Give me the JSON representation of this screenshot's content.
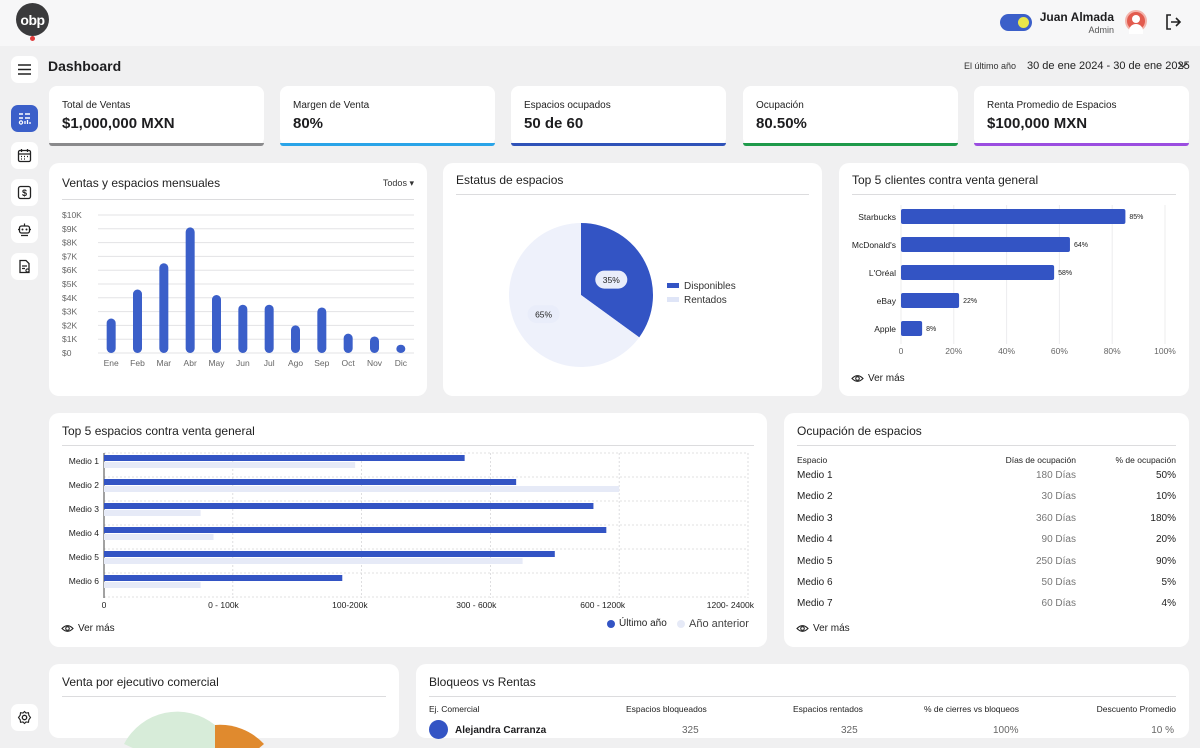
{
  "topbar": {
    "logo_text": "obp",
    "user_name": "Juan Almada",
    "user_role": "Admin"
  },
  "sidebar": {
    "items": [
      {
        "name": "menu",
        "icon": "hamburger-icon"
      },
      {
        "name": "dashboard",
        "icon": "dashboard-icon"
      },
      {
        "name": "calendar",
        "icon": "calendar-icon"
      },
      {
        "name": "billing",
        "icon": "dollar-icon"
      },
      {
        "name": "media",
        "icon": "robot-icon"
      },
      {
        "name": "reports",
        "icon": "document-icon"
      },
      {
        "name": "settings",
        "icon": "gear-icon"
      }
    ]
  },
  "header": {
    "title": "Dashboard",
    "period_label": "El último año",
    "date_range": "30 de ene 2024  - 30 de ene 2025"
  },
  "kpis": [
    {
      "label": "Total de Ventas",
      "value": "$1,000,000 MXN",
      "color": "#8a8a8c"
    },
    {
      "label": "Margen de Venta",
      "value": "80%",
      "color": "#2aa4e8"
    },
    {
      "label": "Espacios ocupados",
      "value": "50 de 60",
      "color": "#2f52b8"
    },
    {
      "label": "Ocupación",
      "value": "80.50%",
      "color": "#1e9a4a"
    },
    {
      "label": "Renta Promedio de Espacios",
      "value": "$100,000 MXN",
      "color": "#9b4de0"
    }
  ],
  "monthly": {
    "title": "Ventas y espacios mensuales",
    "filter": "Todos"
  },
  "status": {
    "title": "Estatus de espacios",
    "legend": [
      "Disponibles",
      "Rentados"
    ]
  },
  "clients": {
    "title": "Top 5 clientes contra venta general",
    "see_more": "Ver más"
  },
  "spaces": {
    "title": "Top 5 espacios contra venta general",
    "see_more": "Ver más",
    "legend": [
      "Último año",
      "Año anterior"
    ]
  },
  "occupancy": {
    "title": "Ocupación de espacios",
    "headers": [
      "Espacio",
      "Días de ocupación",
      "% de ocupación"
    ],
    "rows": [
      [
        "Medio 1",
        "180 Días",
        "50%"
      ],
      [
        "Medio 2",
        "30 Días",
        "10%"
      ],
      [
        "Medio 3",
        "360 Días",
        "180%"
      ],
      [
        "Medio 4",
        "90 Días",
        "20%"
      ],
      [
        "Medio 5",
        "250 Días",
        "90%"
      ],
      [
        "Medio 6",
        "50 Días",
        "5%"
      ],
      [
        "Medio 7",
        "60 Días",
        "4%"
      ]
    ],
    "see_more": "Ver más"
  },
  "executives": {
    "title": "Venta por ejecutivo comercial"
  },
  "blocks": {
    "title": "Bloqueos vs Rentas",
    "headers": [
      "Ej. Comercial",
      "Espacios bloqueados",
      "Espacios rentados",
      "% de cierres vs bloqueos",
      "Descuento Promedio"
    ],
    "rows": [
      [
        "Alejandra Carranza",
        "325",
        "325",
        "100%",
        "10 %"
      ]
    ]
  },
  "chart_data": [
    {
      "type": "bar",
      "title": "Ventas y espacios mensuales",
      "categories": [
        "Ene",
        "Feb",
        "Mar",
        "Abr",
        "May",
        "Jun",
        "Jul",
        "Ago",
        "Sep",
        "Oct",
        "Nov",
        "Dic"
      ],
      "values": [
        2500,
        4600,
        6500,
        9100,
        4200,
        3500,
        3500,
        2000,
        3300,
        1400,
        1200,
        600
      ],
      "ylim": [
        0,
        10000
      ],
      "yticks": [
        "$0",
        "$1K",
        "$2K",
        "$3K",
        "$4K",
        "$5K",
        "$6K",
        "$7K",
        "$8K",
        "$9K",
        "$10K"
      ],
      "color": "#3b5fc9",
      "grid": true
    },
    {
      "type": "pie",
      "title": "Estatus de espacios",
      "categories": [
        "Disponibles",
        "Rentados"
      ],
      "values": [
        35,
        65
      ],
      "labels": [
        "35%",
        "65%"
      ],
      "colors": [
        "#3354c4",
        "#eef1fb"
      ],
      "legend": "right"
    },
    {
      "type": "bar",
      "orientation": "horizontal",
      "title": "Top 5 clientes contra venta general",
      "categories": [
        "Starbucks",
        "McDonald's",
        "L'Oréal",
        "eBay",
        "Apple"
      ],
      "values": [
        85,
        64,
        58,
        22,
        8
      ],
      "labels": [
        "85%",
        "64%",
        "58%",
        "22%",
        "8%"
      ],
      "xticks": [
        "0",
        "20%",
        "40%",
        "60%",
        "80%",
        "100%"
      ],
      "xlim": [
        0,
        100
      ],
      "color": "#3354c4"
    },
    {
      "type": "bar",
      "orientation": "horizontal",
      "title": "Top 5 espacios contra venta general",
      "categories": [
        "Medio 1",
        "Medio 2",
        "Medio 3",
        "Medio 4",
        "Medio 5",
        "Medio 6"
      ],
      "xticks": [
        "0",
        "0 - 100k",
        "100-200k",
        "300 - 600k",
        "600 - 1200k",
        "1200- 2400k"
      ],
      "xlim": [
        0,
        5
      ],
      "series": [
        {
          "name": "Último año",
          "values": [
            2.8,
            3.2,
            3.8,
            3.9,
            3.5,
            1.85
          ],
          "color": "#3354c4"
        },
        {
          "name": "Año anterior",
          "values": [
            1.95,
            4.0,
            0.75,
            0.85,
            3.25,
            0.75
          ],
          "color": "#e6eaf7"
        }
      ],
      "legend": "bottom-right"
    },
    {
      "type": "pie",
      "title": "Venta por ejecutivo comercial",
      "colors": [
        "#e08a2e",
        "#d7ecd9"
      ]
    }
  ]
}
